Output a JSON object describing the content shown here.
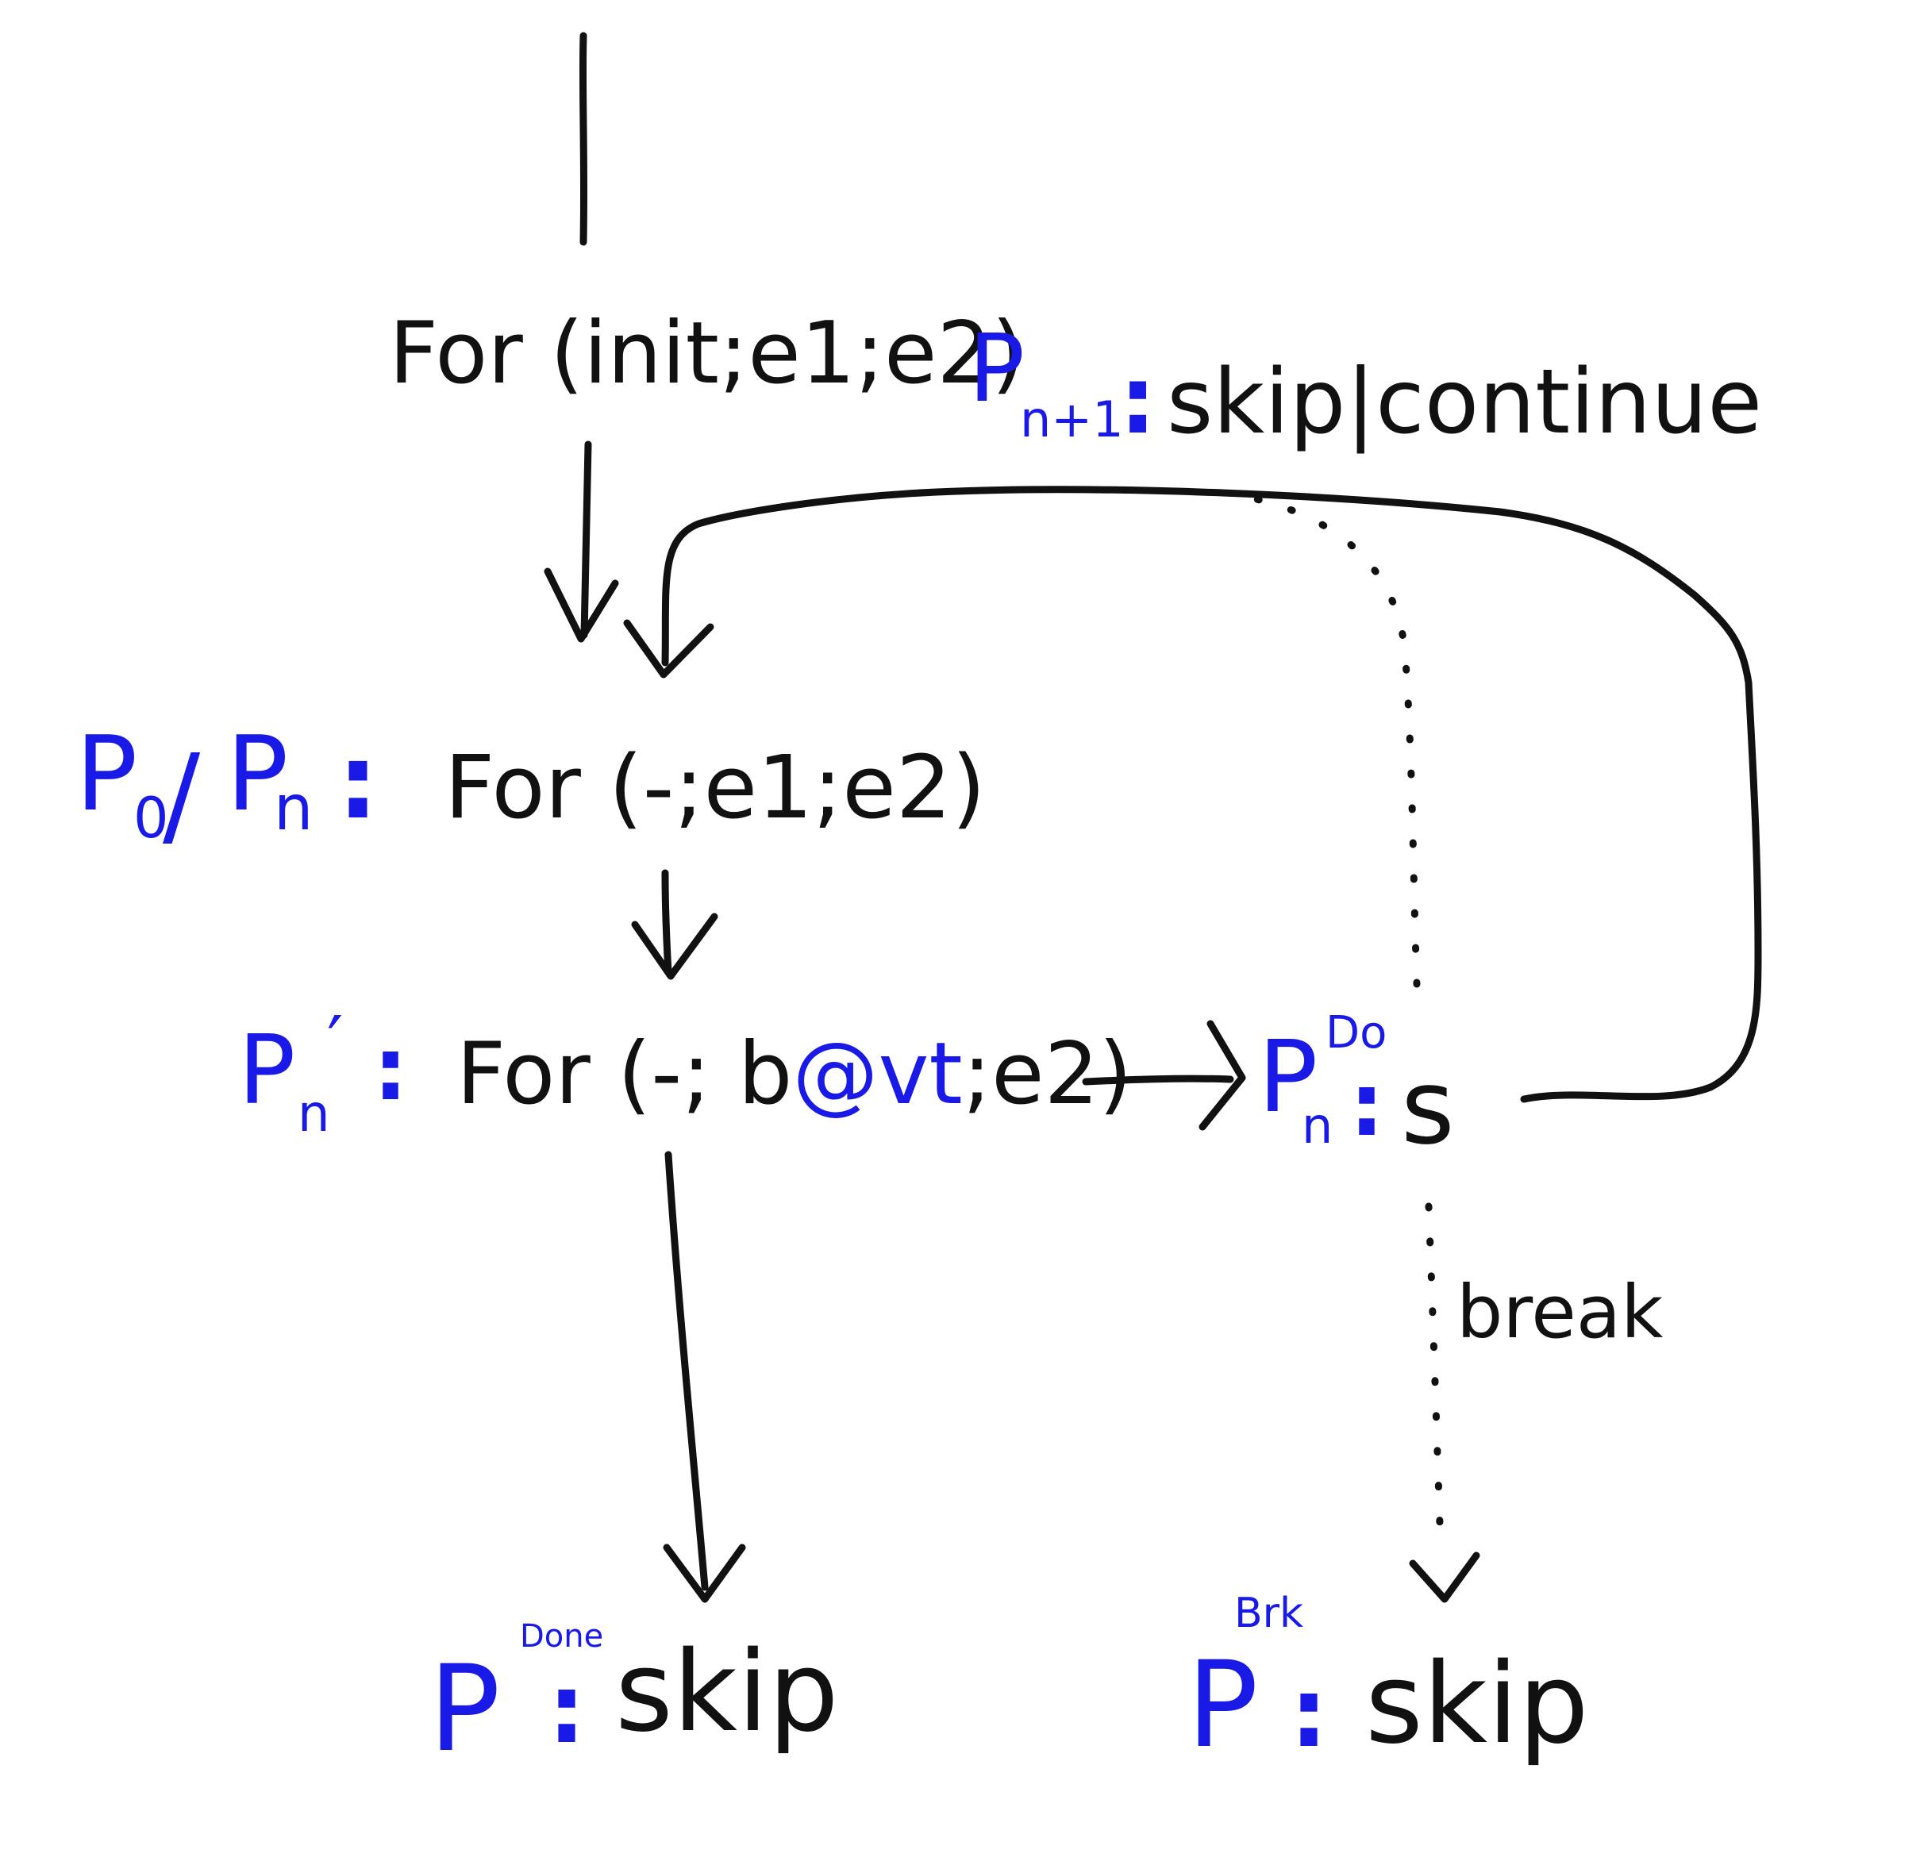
{
  "colors": {
    "ink": "#111111",
    "label": "#1a1ae6",
    "background": "#ffffff"
  },
  "nodes": {
    "entry": {
      "statement": "For (init;e1;e2)"
    },
    "loop_head": {
      "label_main": "P",
      "label_sub0": "0",
      "label_sep": "/",
      "label_main2": "P",
      "label_sub": "n",
      "colon": ":",
      "statement": "For (-;e1;e2)"
    },
    "check": {
      "label_main": "P",
      "label_sub": "n",
      "label_prime": "′",
      "colon": ":",
      "statement_pre": "For (-; b",
      "statement_mark": "@vt",
      "statement_post": ";e2)"
    },
    "body": {
      "label_main": "P",
      "label_sub": "n",
      "label_sup": "Do",
      "colon": ":",
      "statement": "s"
    },
    "next_iter": {
      "label_main": "P",
      "label_sub": "n+1",
      "colon": ":",
      "statement": "skip|continue"
    },
    "done": {
      "label_main": "P",
      "label_sup": "Done",
      "colon": ":",
      "statement": "skip"
    },
    "brk": {
      "label_main": "P",
      "label_sup": "Brk",
      "colon": ":",
      "statement": "skip"
    }
  },
  "edges": {
    "break_label": "break"
  }
}
